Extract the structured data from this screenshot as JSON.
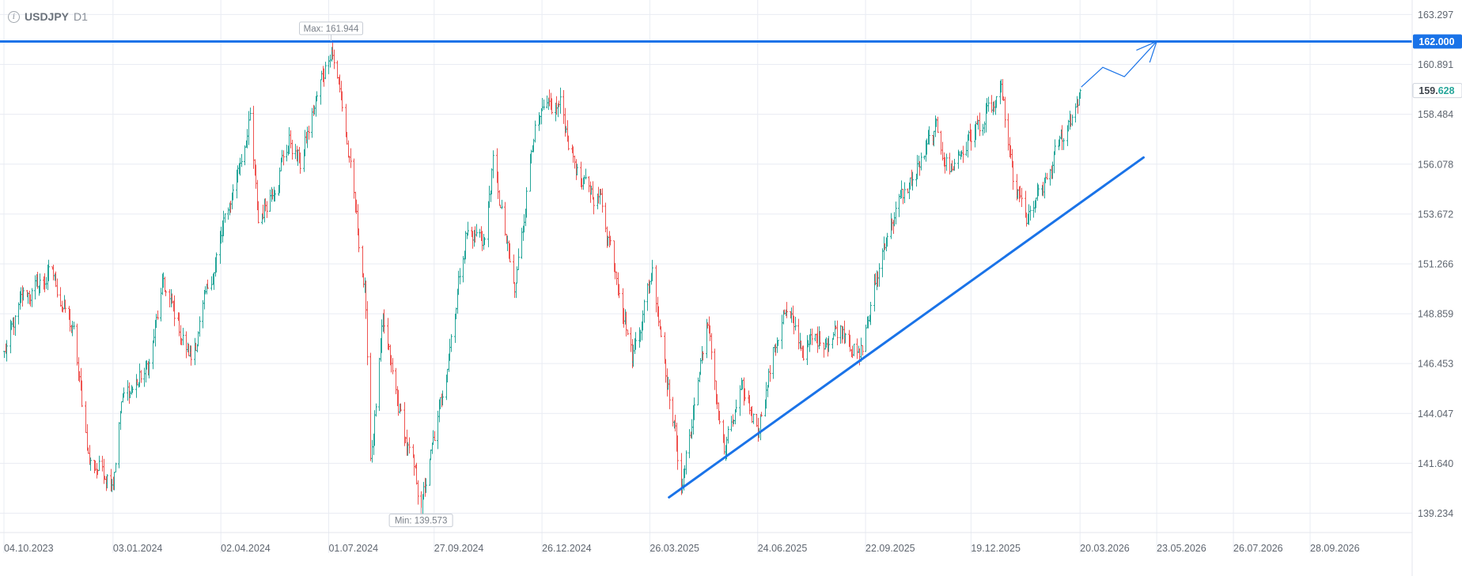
{
  "chart_data": {
    "type": "candlestick",
    "symbol": "USDJPY",
    "timeframe": "D1",
    "x_tick_labels": [
      "04.10.2023",
      "03.01.2024",
      "02.04.2024",
      "01.07.2024",
      "27.09.2024",
      "26.12.2024",
      "26.03.2025",
      "24.06.2025",
      "22.09.2025",
      "19.12.2025",
      "20.03.2026",
      "23.05.2026",
      "26.07.2026",
      "28.09.2026"
    ],
    "x_tick_dates": [
      "2023-10-04",
      "2024-01-03",
      "2024-04-02",
      "2024-07-01",
      "2024-09-27",
      "2024-12-26",
      "2025-03-26",
      "2025-06-24",
      "2025-09-22",
      "2025-12-19",
      "2026-03-20",
      "2026-05-23",
      "2026-07-26",
      "2026-09-28"
    ],
    "y_tick_labels": [
      "163.297",
      "160.891",
      "158.484",
      "156.078",
      "153.672",
      "151.266",
      "148.859",
      "146.453",
      "144.047",
      "141.640",
      "139.234"
    ],
    "ylim": [
      138.3,
      164.0
    ],
    "grid": true,
    "colors": {
      "up": "#26a69a",
      "down": "#ef5350",
      "drawing": "#1a73e8",
      "grid": "#e9ecf3"
    },
    "price_path": [
      [
        "2023-10-04",
        146.9
      ],
      [
        "2023-10-20",
        149.6
      ],
      [
        "2023-11-13",
        150.8
      ],
      [
        "2023-12-01",
        147.8
      ],
      [
        "2023-12-14",
        141.7
      ],
      [
        "2024-01-03",
        141.1
      ],
      [
        "2024-01-10",
        144.6
      ],
      [
        "2024-02-01",
        146.2
      ],
      [
        "2024-02-14",
        150.2
      ],
      [
        "2024-03-08",
        146.6
      ],
      [
        "2024-03-28",
        151.3
      ],
      [
        "2024-04-26",
        158.2
      ],
      [
        "2024-05-03",
        153.2
      ],
      [
        "2024-05-29",
        157.2
      ],
      [
        "2024-06-07",
        156.1
      ],
      [
        "2024-07-03",
        161.9
      ],
      [
        "2024-07-12",
        158.9
      ],
      [
        "2024-07-31",
        150.1
      ],
      [
        "2024-08-05",
        142.0
      ],
      [
        "2024-08-15",
        148.2
      ],
      [
        "2024-08-27",
        144.6
      ],
      [
        "2024-09-16",
        139.6
      ],
      [
        "2024-10-01",
        143.9
      ],
      [
        "2024-10-23",
        152.8
      ],
      [
        "2024-11-08",
        152.5
      ],
      [
        "2024-11-15",
        156.1
      ],
      [
        "2024-12-03",
        149.7
      ],
      [
        "2024-12-19",
        157.9
      ],
      [
        "2025-01-10",
        158.9
      ],
      [
        "2025-01-28",
        154.9
      ],
      [
        "2025-02-12",
        154.6
      ],
      [
        "2025-02-28",
        150.5
      ],
      [
        "2025-03-11",
        146.8
      ],
      [
        "2025-03-28",
        151.0
      ],
      [
        "2025-04-22",
        140.5
      ],
      [
        "2025-05-12",
        148.5
      ],
      [
        "2025-05-27",
        142.1
      ],
      [
        "2025-06-10",
        144.9
      ],
      [
        "2025-06-24",
        143.5
      ],
      [
        "2025-07-15",
        149.0
      ],
      [
        "2025-08-01",
        147.2
      ],
      [
        "2025-08-15",
        147.6
      ],
      [
        "2025-09-05",
        148.3
      ],
      [
        "2025-09-17",
        146.6
      ],
      [
        "2025-10-10",
        153.0
      ],
      [
        "2025-11-20",
        157.6
      ],
      [
        "2025-12-01",
        155.8
      ],
      [
        "2025-12-19",
        157.5
      ],
      [
        "2026-01-14",
        159.2
      ],
      [
        "2026-01-23",
        155.1
      ],
      [
        "2026-02-04",
        153.2
      ],
      [
        "2026-02-20",
        155.2
      ],
      [
        "2026-03-06",
        157.5
      ],
      [
        "2026-03-20",
        159.628
      ]
    ],
    "series": [
      {
        "name": "USDJPY"
      }
    ],
    "annotations": {
      "horizontal_line": {
        "value": 162.0,
        "label": "162.000"
      },
      "last_price": {
        "value": 159.628,
        "label_main": "159.",
        "label_accent": "628"
      },
      "max_label": {
        "text": "Max: 161.944",
        "date": "2024-07-03",
        "value": 161.944
      },
      "min_label": {
        "text": "Min: 139.573",
        "date": "2024-09-16",
        "value": 139.573
      },
      "trendline": {
        "from": [
          "2025-04-11",
          140.0
        ],
        "to": [
          "2026-05-12",
          156.4
        ]
      },
      "projection_path": [
        [
          "2026-03-21",
          159.8
        ],
        [
          "2026-04-08",
          160.75
        ],
        [
          "2026-04-26",
          160.3
        ],
        [
          "2026-05-23",
          162.0
        ]
      ]
    }
  }
}
